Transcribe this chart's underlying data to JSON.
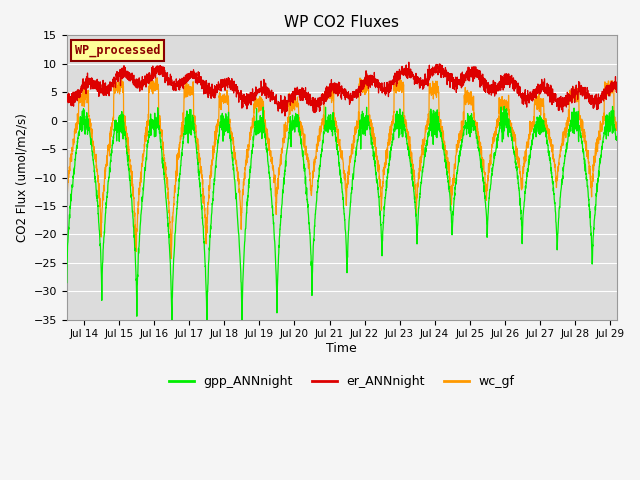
{
  "title": "WP CO2 Fluxes",
  "xlabel": "Time",
  "ylabel": "CO2 Flux (umol/m2/s)",
  "ylim": [
    -35,
    15
  ],
  "xlim_days": [
    13.5,
    29.2
  ],
  "xtick_days": [
    14,
    15,
    16,
    17,
    18,
    19,
    20,
    21,
    22,
    23,
    24,
    25,
    26,
    27,
    28,
    29
  ],
  "xtick_labels": [
    "Jul 14",
    "Jul 15",
    "Jul 16",
    "Jul 17",
    "Jul 18",
    "Jul 19",
    "Jul 20",
    "Jul 21",
    "Jul 22",
    "Jul 23",
    "Jul 24",
    "Jul 25",
    "Jul 26",
    "Jul 27",
    "Jul 28",
    "Jul 29"
  ],
  "legend_entries": [
    "gpp_ANNnight",
    "er_ANNnight",
    "wc_gf"
  ],
  "legend_colors": [
    "#00ee00",
    "#dd0000",
    "#ff9900"
  ],
  "watermark_text": "WP_processed",
  "watermark_color": "#8b0000",
  "watermark_bg": "#ffff99",
  "plot_bg": "#dcdcdc",
  "grid_color": "#ffffff",
  "fig_bg": "#f5f5f5",
  "gpp_color": "#00ee00",
  "er_color": "#dd0000",
  "wc_color": "#ff9900",
  "n_points": 3000
}
